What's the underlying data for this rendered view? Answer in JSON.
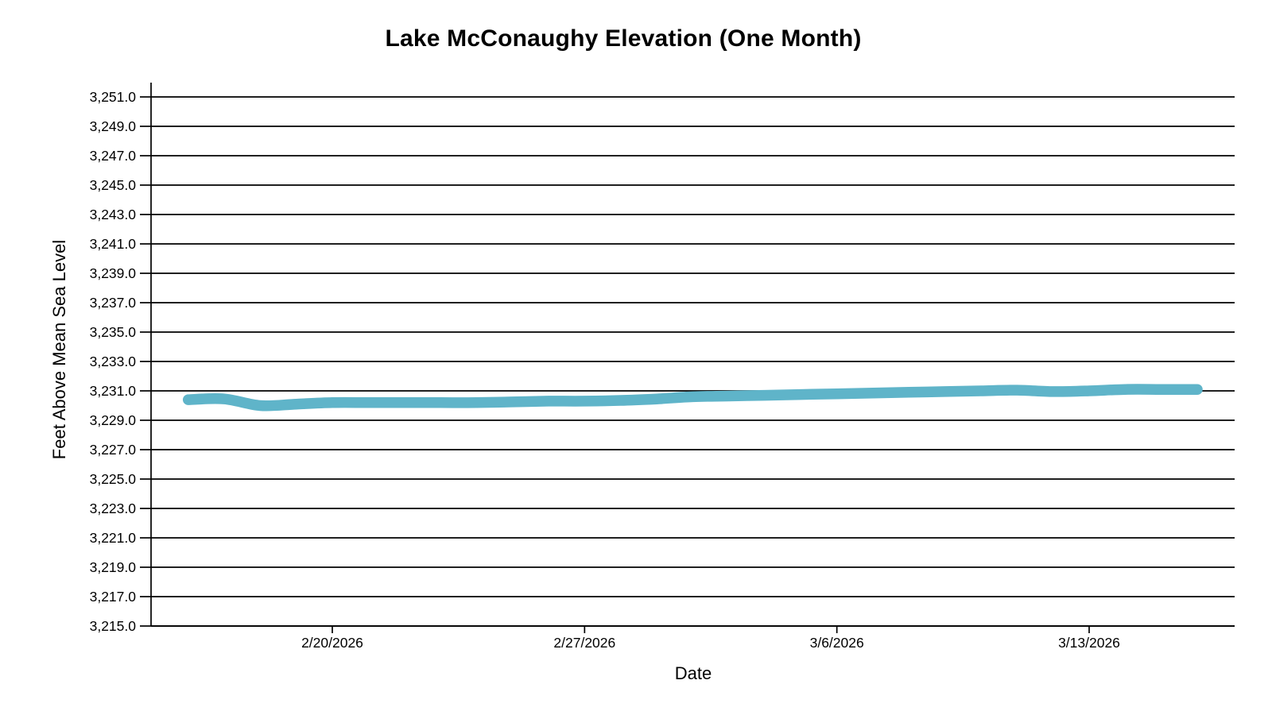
{
  "page": {
    "background_color": "#ffffff",
    "text_color": "#000000"
  },
  "chart_data": {
    "type": "line",
    "title": "Lake McConaughy Elevation (One Month)",
    "xlabel": "Date",
    "ylabel": "Feet Above Mean Sea Level",
    "grid": "horizontal-only",
    "legend": "none",
    "line_color": "#5FB4C9",
    "axis_color": "#000000",
    "ylim": [
      3215.0,
      3251.0
    ],
    "y_tick_step": 2.0,
    "y_tick_labels": [
      "3,215.0",
      "3,217.0",
      "3,219.0",
      "3,221.0",
      "3,223.0",
      "3,225.0",
      "3,227.0",
      "3,229.0",
      "3,231.0",
      "3,233.0",
      "3,235.0",
      "3,237.0",
      "3,239.0",
      "3,241.0",
      "3,243.0",
      "3,245.0",
      "3,247.0",
      "3,249.0",
      "3,251.0"
    ],
    "x_ticks": [
      {
        "label": "2/20/2026",
        "day_index": 4
      },
      {
        "label": "2/27/2026",
        "day_index": 11
      },
      {
        "label": "3/6/2026",
        "day_index": 18
      },
      {
        "label": "3/13/2026",
        "day_index": 25
      }
    ],
    "x": [
      "2/16/2026",
      "2/17/2026",
      "2/18/2026",
      "2/19/2026",
      "2/20/2026",
      "2/21/2026",
      "2/22/2026",
      "2/23/2026",
      "2/24/2026",
      "2/25/2026",
      "2/26/2026",
      "2/27/2026",
      "2/28/2026",
      "3/1/2026",
      "3/2/2026",
      "3/3/2026",
      "3/4/2026",
      "3/5/2026",
      "3/6/2026",
      "3/7/2026",
      "3/8/2026",
      "3/9/2026",
      "3/10/2026",
      "3/11/2026",
      "3/12/2026",
      "3/13/2026",
      "3/14/2026",
      "3/15/2026",
      "3/16/2026"
    ],
    "values": [
      3230.4,
      3230.45,
      3230.0,
      3230.1,
      3230.2,
      3230.2,
      3230.2,
      3230.2,
      3230.2,
      3230.25,
      3230.3,
      3230.3,
      3230.35,
      3230.45,
      3230.6,
      3230.65,
      3230.7,
      3230.75,
      3230.8,
      3230.85,
      3230.9,
      3230.95,
      3231.0,
      3231.05,
      3230.95,
      3231.0,
      3231.1,
      3231.1,
      3231.1
    ]
  }
}
